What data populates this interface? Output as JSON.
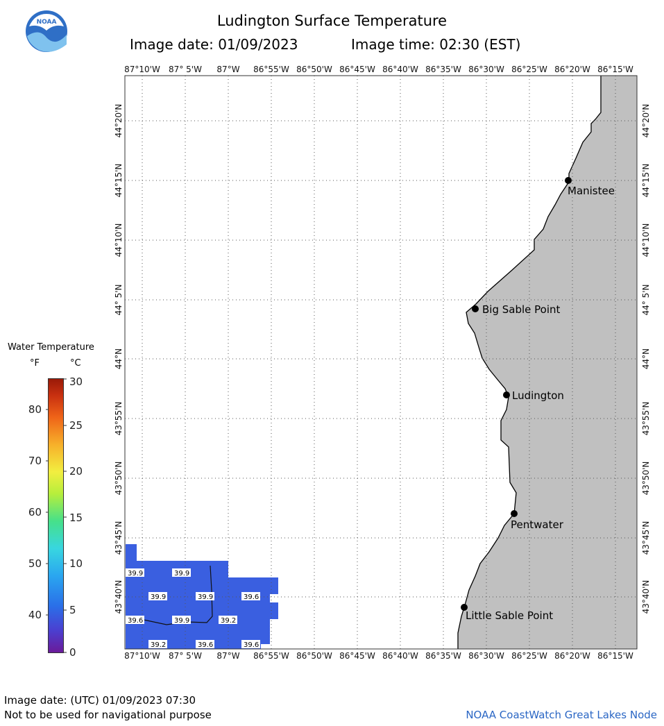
{
  "header": {
    "title": "Ludington Surface Temperature",
    "image_date": "Image date: 01/09/2023",
    "image_time": "Image time: 02:30 (EST)"
  },
  "logo": {
    "name": "noaa-logo",
    "text": "NOAA"
  },
  "legend": {
    "title": "Water Temperature",
    "unit_f": "°F",
    "unit_c": "°C",
    "f_ticks": [
      "80",
      "70",
      "60",
      "50",
      "40"
    ],
    "c_ticks": [
      "30",
      "25",
      "20",
      "15",
      "10",
      "5",
      "0"
    ]
  },
  "map": {
    "lon_labels": [
      "87°10'W",
      "87° 5'W",
      "87°W",
      "86°55'W",
      "86°50'W",
      "86°45'W",
      "86°40'W",
      "86°35'W",
      "86°30'W",
      "86°25'W",
      "86°20'W",
      "86°15'W"
    ],
    "lat_labels": [
      "44°20'N",
      "44°15'N",
      "44°10'N",
      "44° 5'N",
      "44°N",
      "43°55'N",
      "43°50'N",
      "43°45'N",
      "43°40'N"
    ],
    "land_color": "#c0c0c0",
    "water_color": "#3a5fe0",
    "places": [
      "Manistee",
      "Big Sable Point",
      "Ludington",
      "Pentwater",
      "Little Sable Point"
    ],
    "temp_labels": [
      "39.9",
      "39.9",
      "39.9",
      "39.9",
      "39.6",
      "39.6",
      "39.9",
      "39.2",
      "39.2",
      "39.6",
      "39.6"
    ]
  },
  "footer": {
    "utc_date": "Image date: (UTC) 01/09/2023  07:30",
    "disclaimer": "Not to be used for navigational purpose",
    "credit": "NOAA CoastWatch Great Lakes Node"
  }
}
